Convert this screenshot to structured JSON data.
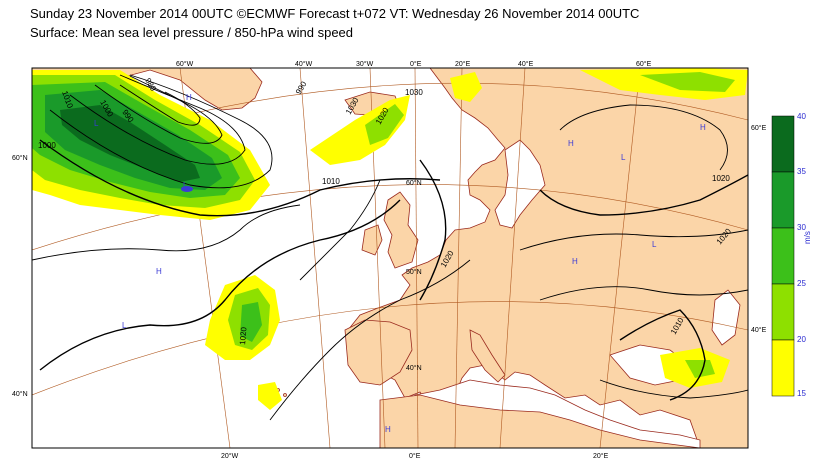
{
  "header": {
    "line1": "Sunday 23 November 2014 00UTC ©ECMWF Forecast t+072 VT: Wednesday 26 November 2014 00UTC",
    "line2": "Surface: Mean sea level pressure / 850-hPa wind speed"
  },
  "colors": {
    "land": "#fbd5a8",
    "sea": "#ffffff",
    "coast": "#9a2a1e",
    "graticule": "#b05a22",
    "isobar": "#000000",
    "wind_15_20": "#ffff00",
    "wind_20_25": "#8ee000",
    "wind_25_30": "#3cc01a",
    "wind_30_35": "#1a9a2a",
    "wind_35_40": "#0b6b1e"
  },
  "lat_labels": [
    "60°N",
    "40°N",
    "60°N",
    "50°N",
    "40°N",
    "60°E",
    "40°E"
  ],
  "lon_labels": [
    "60°W",
    "40°W",
    "30°W",
    "0°E",
    "20°E",
    "40°E",
    "60°E",
    "20°W",
    "0°E",
    "20°E"
  ],
  "isobar_labels": [
    "1010",
    "1000",
    "990",
    "980",
    "1000",
    "990",
    "1020",
    "1010",
    "1020",
    "1030",
    "1020",
    "1020",
    "1010",
    "1020",
    "1030"
  ],
  "pressure_centres": [
    "H",
    "L",
    "L",
    "H",
    "L",
    "H",
    "L",
    "H",
    "H",
    "L",
    "H"
  ],
  "colorbar": {
    "unit": "m/s",
    "ticks": [
      "15",
      "20",
      "25",
      "30",
      "35",
      "40"
    ]
  }
}
